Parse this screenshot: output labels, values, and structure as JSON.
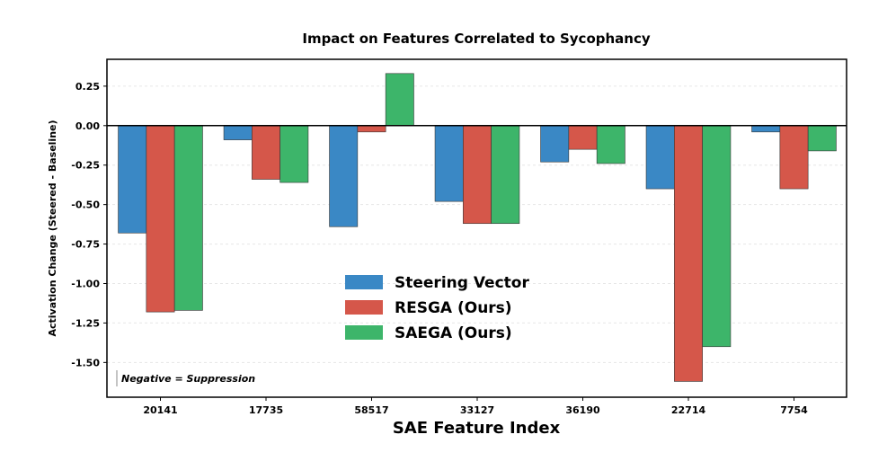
{
  "chart_data": {
    "type": "bar",
    "title": "Impact on Features Correlated to Sycophancy",
    "xlabel": "SAE Feature Index",
    "ylabel": "Activation Change (Steered - Baseline)",
    "categories": [
      "20141",
      "17735",
      "58517",
      "33127",
      "36190",
      "22714",
      "7754"
    ],
    "series": [
      {
        "name": "Steering Vector",
        "color": "#3A88C5",
        "values": [
          -0.68,
          -0.09,
          -0.64,
          -0.48,
          -0.23,
          -0.4,
          -0.04
        ]
      },
      {
        "name": "RESGA (Ours)",
        "color": "#D5574A",
        "values": [
          -1.18,
          -0.34,
          -0.04,
          -0.62,
          -0.15,
          -1.62,
          -0.4
        ]
      },
      {
        "name": "SAEGA (Ours)",
        "color": "#3DB56A",
        "values": [
          -1.17,
          -0.36,
          0.33,
          -0.62,
          -0.24,
          -1.4,
          -0.16
        ]
      }
    ],
    "yticks": [
      0.25,
      0.0,
      -0.25,
      -0.5,
      -0.75,
      -1.0,
      -1.25,
      -1.5
    ],
    "ytick_labels": [
      "0.25",
      "0.00",
      "-0.25",
      "-0.50",
      "-0.75",
      "-1.00",
      "-1.25",
      "-1.50"
    ],
    "ylim": [
      -1.72,
      0.42
    ],
    "grid": true,
    "legend_position": "center",
    "annotation": "Negative = Suppression"
  }
}
